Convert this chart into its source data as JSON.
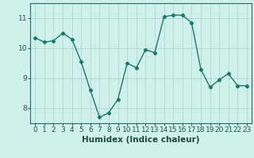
{
  "x": [
    0,
    1,
    2,
    3,
    4,
    5,
    6,
    7,
    8,
    9,
    10,
    11,
    12,
    13,
    14,
    15,
    16,
    17,
    18,
    19,
    20,
    21,
    22,
    23
  ],
  "y": [
    10.35,
    10.2,
    10.25,
    10.5,
    10.3,
    9.55,
    8.6,
    7.7,
    7.85,
    8.3,
    9.5,
    9.35,
    9.95,
    9.85,
    11.05,
    11.1,
    11.1,
    10.85,
    9.3,
    8.7,
    8.95,
    9.15,
    8.75,
    8.75
  ],
  "line_color": "#1a7a6e",
  "marker": "D",
  "marker_size": 2.2,
  "bg_color": "#cff0eb",
  "grid_color": "#b0d8d0",
  "xlabel": "Humidex (Indice chaleur)",
  "ylim": [
    7.5,
    11.5
  ],
  "yticks": [
    8,
    9,
    10,
    11
  ],
  "tick_fontsize": 6.5,
  "xlabel_fontsize": 7.5,
  "spine_color": "#2a6a60",
  "line_width": 1.0
}
